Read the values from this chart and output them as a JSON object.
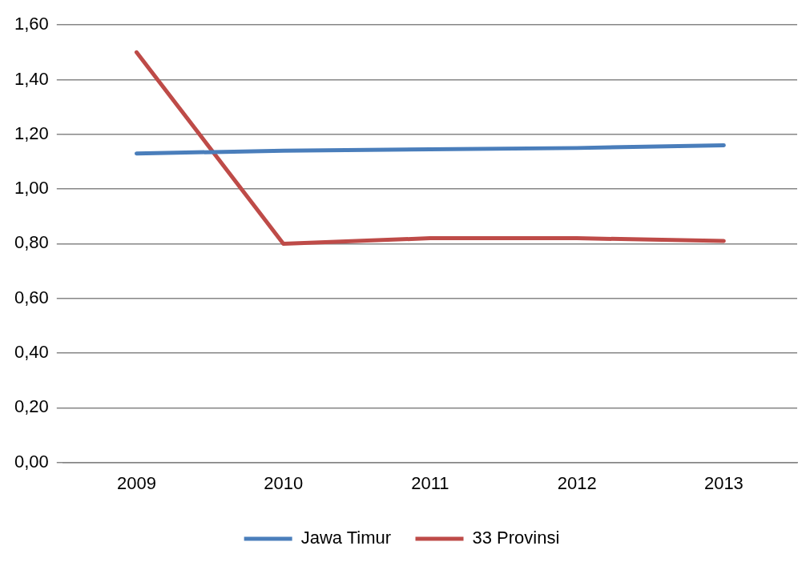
{
  "chart_data": {
    "type": "line",
    "categories": [
      "2009",
      "2010",
      "2011",
      "2012",
      "2013"
    ],
    "series": [
      {
        "name": "Jawa Timur",
        "color": "#4a7ebb",
        "values": [
          1.13,
          1.14,
          1.145,
          1.15,
          1.16
        ]
      },
      {
        "name": "33 Provinsi",
        "color": "#be4b48",
        "values": [
          1.5,
          0.8,
          0.82,
          0.82,
          0.81
        ]
      }
    ],
    "ylim": [
      0,
      1.6
    ],
    "yticks": [
      {
        "value": 0,
        "label": "0,00"
      },
      {
        "value": 0.2,
        "label": "0,20"
      },
      {
        "value": 0.4,
        "label": "0,40"
      },
      {
        "value": 0.6,
        "label": "0,60"
      },
      {
        "value": 0.8,
        "label": "0,80"
      },
      {
        "value": 1,
        "label": "1,00"
      },
      {
        "value": 1.2,
        "label": "1,20"
      },
      {
        "value": 1.4,
        "label": "1,40"
      },
      {
        "value": 1.6,
        "label": "1,60"
      }
    ],
    "grid": "y",
    "legend": "bottom",
    "marker": "none",
    "line_style": "solid"
  }
}
